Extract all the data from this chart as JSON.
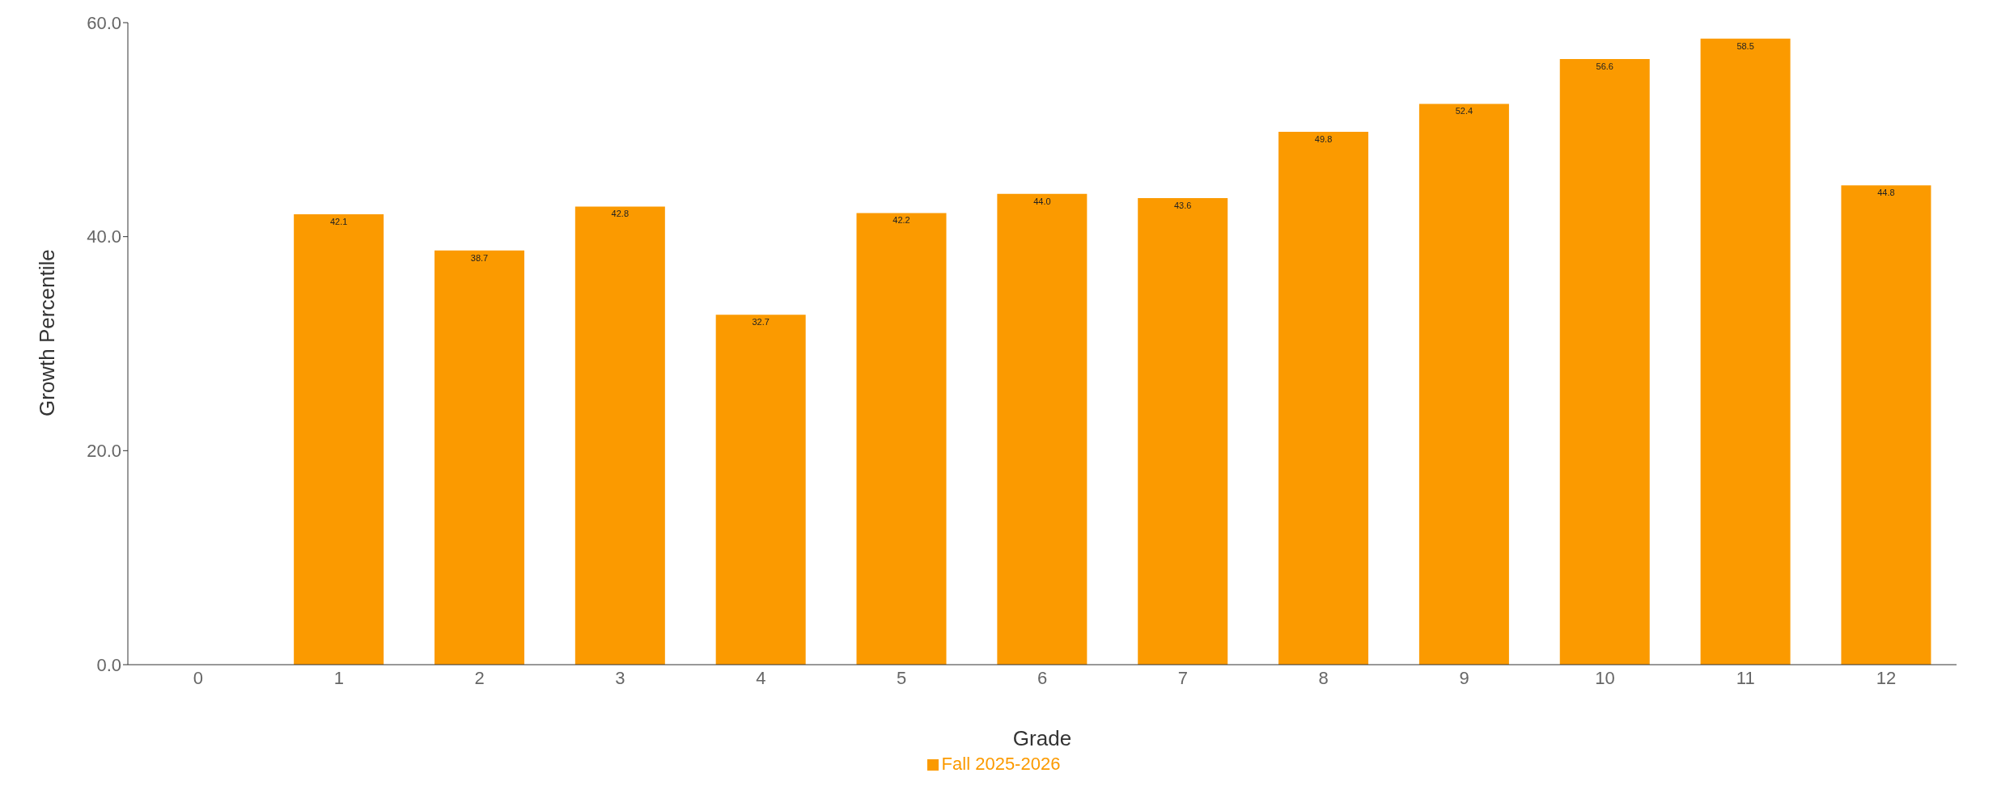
{
  "chart_data": {
    "type": "bar",
    "xlabel": "Grade",
    "ylabel": "Growth Percentile",
    "categories": [
      "0",
      "1",
      "2",
      "3",
      "4",
      "5",
      "6",
      "7",
      "8",
      "9",
      "10",
      "11",
      "12"
    ],
    "series": [
      {
        "name": "Fall 2025-2026",
        "color": "#fb9a00",
        "values": [
          null,
          42.1,
          38.7,
          42.8,
          32.7,
          42.2,
          44.0,
          43.6,
          49.8,
          52.4,
          56.6,
          58.5,
          44.8
        ],
        "value_labels": [
          null,
          "42.1",
          "38.7",
          "42.8",
          "32.7",
          "42.2",
          "44.0",
          "43.6",
          "49.8",
          "52.4",
          "56.6",
          "58.5",
          "44.8"
        ]
      }
    ],
    "ylim": [
      0,
      60
    ],
    "yticks": [
      {
        "value": 0,
        "label": "0.0"
      },
      {
        "value": 20,
        "label": "20.0"
      },
      {
        "value": 40,
        "label": "40.0"
      },
      {
        "value": 60,
        "label": "60.0"
      }
    ],
    "grid": false,
    "legend": "bottom"
  }
}
